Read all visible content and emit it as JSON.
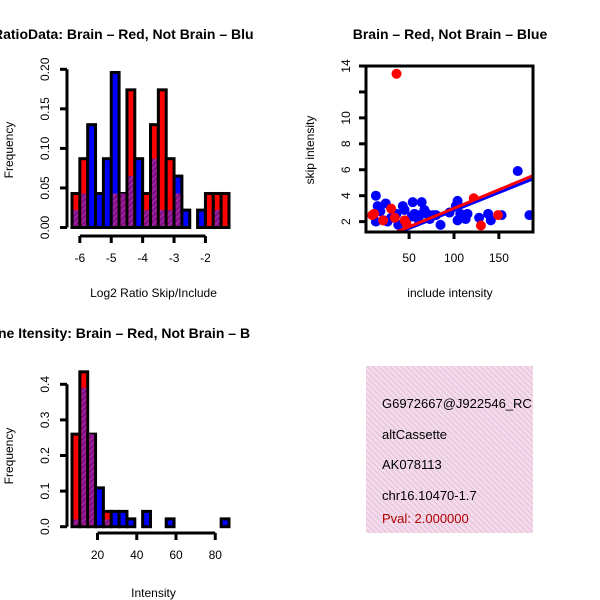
{
  "colors": {
    "group_a": "#ff0000",
    "group_b": "#0000ff",
    "overlap": "#9a189a",
    "pval": "#b00000",
    "info_bg": "#f8d8f0"
  },
  "chart_data": [
    {
      "type": "bar",
      "title": "RatioData: Brain – Red, Not Brain – Blu",
      "xlabel": "Log2 Ratio Skip/Include",
      "ylabel": "Frequency",
      "xlim": [
        -6.25,
        -1.25
      ],
      "ylim": [
        0,
        0.2
      ],
      "xticks": [
        "-6",
        "-5",
        "-4",
        "-3",
        "-2"
      ],
      "xtick_values": [
        -6,
        -5,
        -4,
        -3,
        -2
      ],
      "yticks": [
        "0.00",
        "0.05",
        "0.10",
        "0.15",
        "0.20"
      ],
      "ytick_values": [
        0,
        0.05,
        0.1,
        0.15,
        0.2
      ],
      "bin_start": -6.25,
      "bin_width": 0.25,
      "series": [
        {
          "name": "Brain (Red)",
          "values": [
            0.043,
            0.087,
            0,
            0,
            0,
            0.043,
            0.043,
            0.174,
            0,
            0.043,
            0.13,
            0.174,
            0.087,
            0.043,
            0,
            0,
            0,
            0.043,
            0.043,
            0.043
          ]
        },
        {
          "name": "Not Brain (Blue)",
          "values": [
            0.022,
            0.043,
            0.13,
            0.043,
            0.087,
            0.196,
            0.043,
            0.065,
            0.087,
            0.022,
            0.087,
            0.022,
            0.022,
            0.065,
            0.022,
            0,
            0.022,
            0,
            0.022,
            0
          ]
        }
      ]
    },
    {
      "type": "scatter",
      "title": "Brain – Red, Not Brain – Blue",
      "xlabel": "include intensity",
      "ylabel": "skip intensity",
      "xlim": [
        2,
        188
      ],
      "ylim": [
        1.2,
        14
      ],
      "xticks": [
        "50",
        "100",
        "150"
      ],
      "xtick_values": [
        50,
        100,
        150
      ],
      "yticks": [
        "2",
        "4",
        "6",
        "8",
        "10",
        "",
        "14"
      ],
      "ytick_values": [
        2,
        4,
        6,
        8,
        10,
        12,
        14
      ],
      "series": [
        {
          "name": "Not Brain (Blue)",
          "points": [
            [
              13,
              4.0
            ],
            [
              15,
              3.2
            ],
            [
              24,
              3.4
            ],
            [
              13,
              2.0
            ],
            [
              22,
              2.1
            ],
            [
              26,
              2.0
            ],
            [
              38,
              1.75
            ],
            [
              36,
              2.6
            ],
            [
              43,
              3.2
            ],
            [
              54,
              3.5
            ],
            [
              64,
              3.5
            ],
            [
              56,
              2.6
            ],
            [
              62,
              2.5
            ],
            [
              70,
              2.6
            ],
            [
              77,
              2.5
            ],
            [
              85,
              1.75
            ],
            [
              73,
              2.2
            ],
            [
              104,
              3.6
            ],
            [
              102,
              3.2
            ],
            [
              107,
              2.6
            ],
            [
              104,
              2.1
            ],
            [
              113,
              2.2
            ],
            [
              115,
              2.6
            ],
            [
              128,
              2.3
            ],
            [
              138,
              2.6
            ],
            [
              141,
              2.1
            ],
            [
              153,
              2.5
            ],
            [
              171,
              5.9
            ],
            [
              184,
              2.5
            ],
            [
              53,
              2.4
            ],
            [
              60,
              2.2
            ],
            [
              80,
              2.5
            ],
            [
              110,
              2.4
            ],
            [
              18,
              2.8
            ],
            [
              30,
              2.3
            ],
            [
              45,
              2.9
            ],
            [
              95,
              2.7
            ],
            [
              67,
              2.9
            ]
          ],
          "fit": [
            [
              40,
              1.2
            ],
            [
              190,
              5.35
            ]
          ]
        },
        {
          "name": "Brain (Red)",
          "points": [
            [
              36,
              13.4
            ],
            [
              9,
              2.5
            ],
            [
              11,
              2.6
            ],
            [
              30,
              3.0
            ],
            [
              34,
              2.3
            ],
            [
              45,
              2.1
            ],
            [
              47,
              1.85
            ],
            [
              122,
              3.8
            ],
            [
              130,
              1.7
            ],
            [
              149,
              2.5
            ],
            [
              21,
              2.1
            ]
          ],
          "fit": [
            [
              36,
              1.2
            ],
            [
              190,
              5.6
            ]
          ]
        }
      ]
    },
    {
      "type": "bar",
      "title": "ne Itensity: Brain – Red, Not Brain – B",
      "xlabel": "Intensity",
      "ylabel": "Frequency",
      "xlim": [
        7,
        87
      ],
      "ylim": [
        0,
        0.4
      ],
      "xticks": [
        "20",
        "40",
        "60",
        "80"
      ],
      "xtick_values": [
        20,
        40,
        60,
        80
      ],
      "yticks": [
        "0.0",
        "0.1",
        "0.2",
        "0.3",
        "0.4"
      ],
      "ytick_values": [
        0,
        0.1,
        0.2,
        0.3,
        0.4
      ],
      "bin_start": 7,
      "bin_width": 4,
      "series": [
        {
          "name": "Brain (Red)",
          "values": [
            0.26,
            0.435,
            0.26,
            0,
            0.043,
            0,
            0,
            0,
            0,
            0,
            0,
            0,
            0,
            0,
            0,
            0,
            0,
            0,
            0,
            0
          ]
        },
        {
          "name": "Not Brain (Blue)",
          "values": [
            0.02,
            0.39,
            0.26,
            0.109,
            0.02,
            0.043,
            0.043,
            0.022,
            0,
            0.043,
            0,
            0,
            0.022,
            0,
            0,
            0,
            0,
            0,
            0,
            0.022
          ]
        }
      ]
    }
  ],
  "info_panel": {
    "lines": [
      "G6972667@J922546_RC",
      "altCassette",
      "AK078113",
      "chr16.10470-1.7"
    ],
    "pval": "Pval: 2.000000"
  }
}
